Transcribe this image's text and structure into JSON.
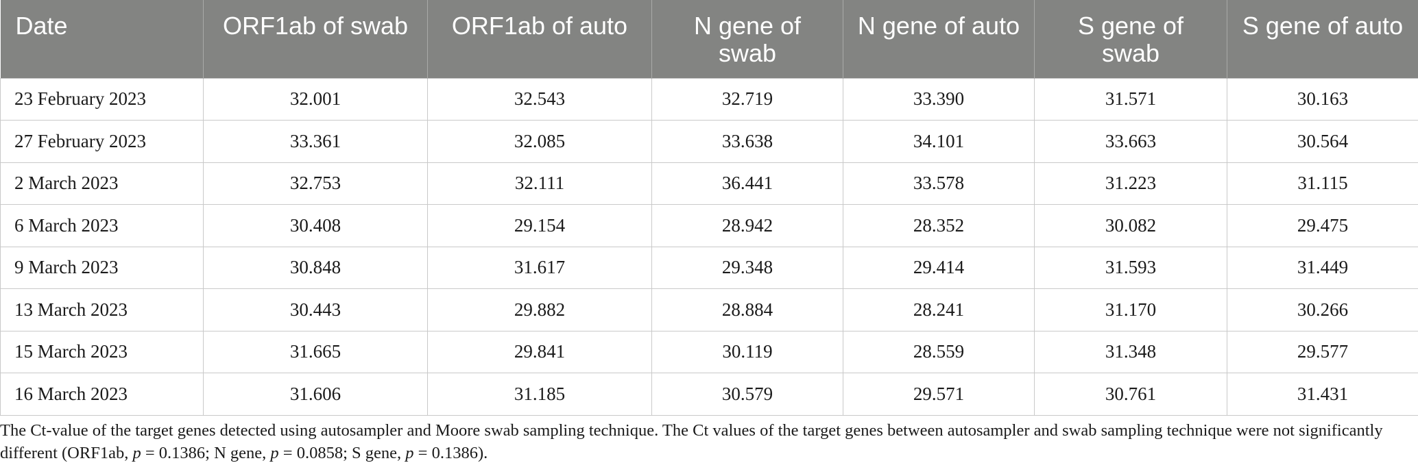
{
  "table": {
    "headers": [
      "Date",
      "ORF1ab of swab",
      "ORF1ab of auto",
      "N gene of swab",
      "N gene of auto",
      "S gene of swab",
      "S gene of auto"
    ],
    "rows": [
      [
        "23 February 2023",
        "32.001",
        "32.543",
        "32.719",
        "33.390",
        "31.571",
        "30.163"
      ],
      [
        "27 February 2023",
        "33.361",
        "32.085",
        "33.638",
        "34.101",
        "33.663",
        "30.564"
      ],
      [
        "2 March 2023",
        "32.753",
        "32.111",
        "36.441",
        "33.578",
        "31.223",
        "31.115"
      ],
      [
        "6 March 2023",
        "30.408",
        "29.154",
        "28.942",
        "28.352",
        "30.082",
        "29.475"
      ],
      [
        "9 March 2023",
        "30.848",
        "31.617",
        "29.348",
        "29.414",
        "31.593",
        "31.449"
      ],
      [
        "13 March 2023",
        "30.443",
        "29.882",
        "28.884",
        "28.241",
        "31.170",
        "30.266"
      ],
      [
        "15 March 2023",
        "31.665",
        "29.841",
        "30.119",
        "28.559",
        "31.348",
        "29.577"
      ],
      [
        "16 March 2023",
        "31.606",
        "31.185",
        "30.579",
        "29.571",
        "30.761",
        "31.431"
      ]
    ]
  },
  "caption": {
    "sentence1": "The Ct-value of the target genes detected using autosampler and Moore swab sampling technique. The Ct values of the target genes between autosampler and swab sampling technique were not significantly different (ORF1ab, ",
    "p_symbol": "p",
    "orf1ab_p": " = 0.1386; N gene, ",
    "n_p": " = 0.0858; S gene, ",
    "s_p": " = 0.1386)."
  },
  "colors": {
    "header_bg": "#838482",
    "header_text": "#ffffff",
    "grid_line": "#c9c9c9",
    "body_text": "#1a1a1a"
  }
}
